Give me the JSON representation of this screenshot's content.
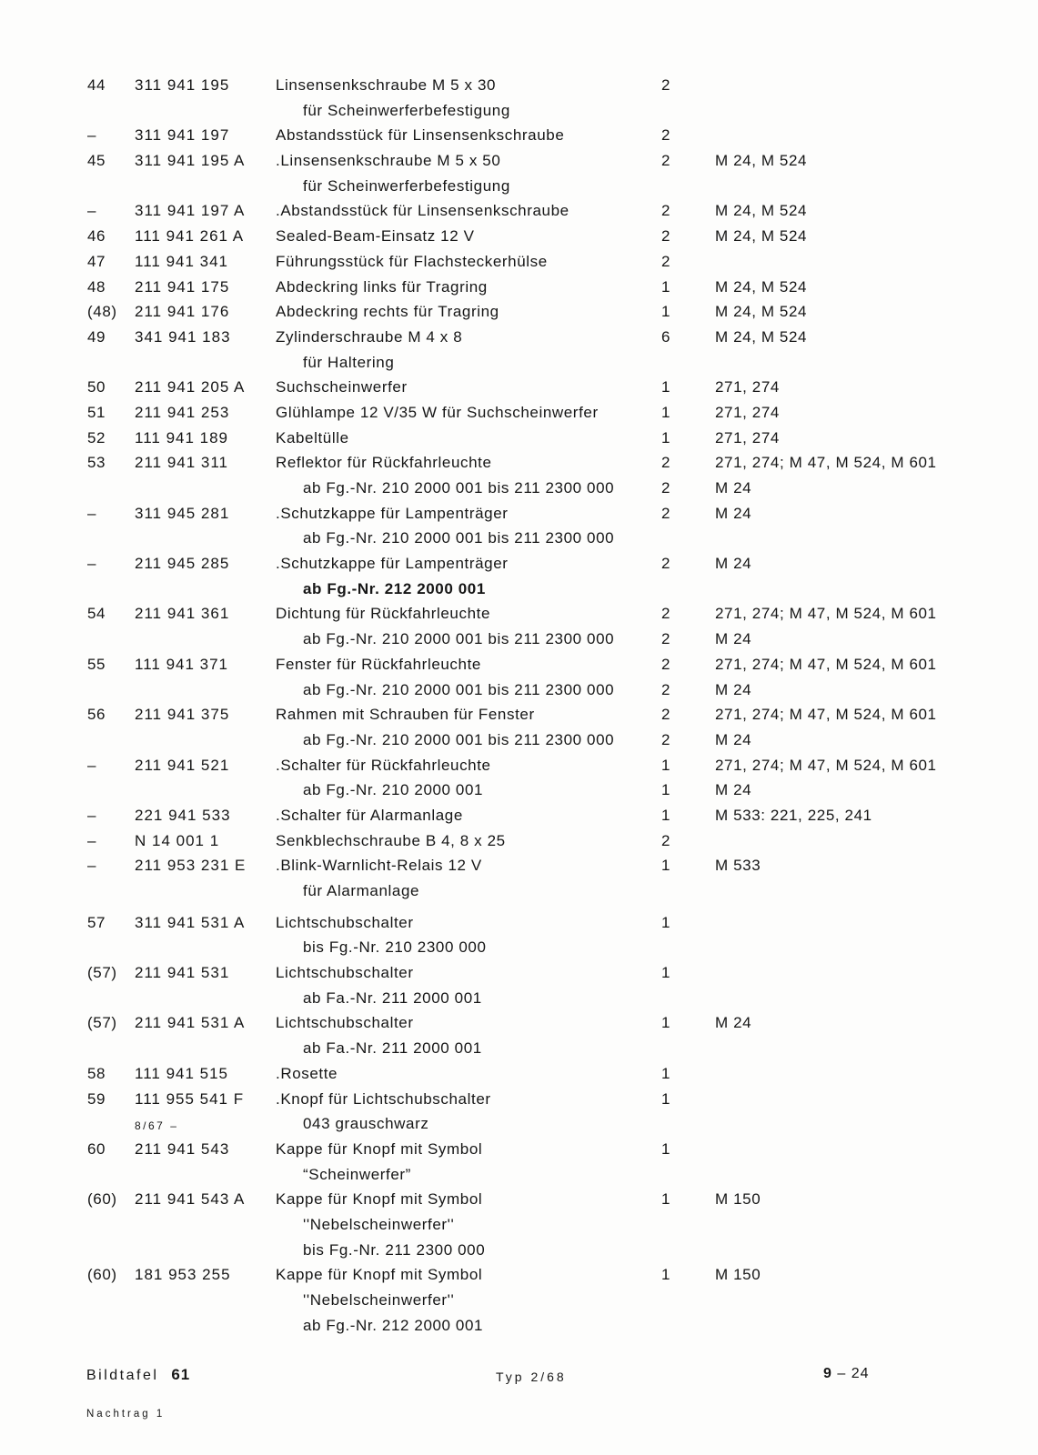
{
  "page": {
    "background_color": "#fdfdfc",
    "text_color": "#161616"
  },
  "table": {
    "rows": [
      {
        "pos": "44",
        "part": "311 941 195",
        "desc": "Linsensenkschraube M 5 x 30",
        "qty": "2"
      },
      {
        "desc": "für Scheinwerferbefestigung",
        "indent": true
      },
      {
        "pos": "–",
        "part": "311 941 197",
        "desc": "Abstandsstück für Linsensenkschraube",
        "qty": "2"
      },
      {
        "pos": "45",
        "part": "311 941 195 A",
        "desc": ".Linsensenkschraube M 5 x 50",
        "qty": "2",
        "models": "M 24, M 524"
      },
      {
        "desc": "für Scheinwerferbefestigung",
        "indent": true
      },
      {
        "pos": "–",
        "part": "311 941 197 A",
        "desc": ".Abstandsstück für Linsensenkschraube",
        "qty": "2",
        "models": "M 24, M 524"
      },
      {
        "pos": "46",
        "part": "111 941 261 A",
        "desc": "Sealed-Beam-Einsatz 12 V",
        "qty": "2",
        "models": "M 24, M 524"
      },
      {
        "pos": "47",
        "part": "111 941 341",
        "desc": "Führungsstück für Flachsteckerhülse",
        "qty": "2"
      },
      {
        "pos": "48",
        "part": "211 941 175",
        "desc": "Abdeckring links für Tragring",
        "qty": "1",
        "models": "M 24, M 524"
      },
      {
        "pos": "(48)",
        "part": "211 941 176",
        "desc": "Abdeckring rechts für Tragring",
        "qty": "1",
        "models": "M 24, M 524"
      },
      {
        "pos": "49",
        "part": "341 941 183",
        "desc": "Zylinderschraube M 4 x 8",
        "qty": "6",
        "models": "M 24, M 524"
      },
      {
        "desc": "für Haltering",
        "indent": true
      },
      {
        "pos": "50",
        "part": "211 941 205 A",
        "desc": "Suchscheinwerfer",
        "qty": "1",
        "models": "271, 274"
      },
      {
        "pos": "51",
        "part": "211 941 253",
        "desc": "Glühlampe 12 V/35 W für Suchscheinwerfer",
        "qty": "1",
        "models": "271, 274"
      },
      {
        "pos": "52",
        "part": "111 941 189",
        "desc": "Kabeltülle",
        "qty": "1",
        "models": "271, 274"
      },
      {
        "pos": "53",
        "part": "211 941 311",
        "desc": "Reflektor für Rückfahrleuchte",
        "qty": "2",
        "models": "271, 274; M 47, M 524, M 601"
      },
      {
        "desc": "ab Fg.-Nr. 210 2000 001 bis 211 2300 000",
        "indent": true,
        "qty": "2",
        "models": "M 24"
      },
      {
        "pos": "–",
        "part": "311 945 281",
        "desc": ".Schutzkappe für Lampenträger",
        "qty": "2",
        "models": "M 24"
      },
      {
        "desc": "ab Fg.-Nr. 210 2000 001 bis 211 2300 000",
        "indent": true
      },
      {
        "pos": "–",
        "part": "211 945 285",
        "desc": ".Schutzkappe für Lampenträger",
        "qty": "2",
        "models": "M 24"
      },
      {
        "desc": "ab Fg.-Nr.  212 2000 001",
        "indent": true,
        "bold": true
      },
      {
        "pos": "54",
        "part": "211 941 361",
        "desc": "Dichtung für Rückfahrleuchte",
        "qty": "2",
        "models": "271, 274; M 47, M 524, M 601"
      },
      {
        "desc": "ab Fg.-Nr. 210 2000 001 bis 211 2300 000",
        "indent": true,
        "qty": "2",
        "models": "M 24"
      },
      {
        "pos": "55",
        "part": "111 941 371",
        "desc": "Fenster für Rückfahrleuchte",
        "qty": "2",
        "models": "271, 274; M 47, M 524, M 601"
      },
      {
        "desc": "ab Fg.-Nr. 210 2000 001 bis 211 2300 000",
        "indent": true,
        "qty": "2",
        "models": "M 24"
      },
      {
        "pos": "56",
        "part": "211 941 375",
        "desc": "Rahmen mit Schrauben für Fenster",
        "qty": "2",
        "models": "271, 274; M 47, M 524, M 601"
      },
      {
        "desc": "ab Fg.-Nr. 210 2000 001 bis 211 2300 000",
        "indent": true,
        "qty": "2",
        "models": "M 24"
      },
      {
        "pos": "–",
        "part": "211 941 521",
        "desc": ".Schalter für Rückfahrleuchte",
        "qty": "1",
        "models": "271, 274; M 47, M 524, M 601"
      },
      {
        "desc": "ab Fg.-Nr. 210 2000 001",
        "indent": true,
        "qty": "1",
        "models": "M 24"
      },
      {
        "pos": "–",
        "part": "221 941 533",
        "desc": ".Schalter für Alarmanlage",
        "qty": "1",
        "models": "M 533: 221, 225, 241"
      },
      {
        "pos": "–",
        "part": "N 14 001 1",
        "desc": "Senkblechschraube B 4, 8 x 25",
        "qty": "2"
      },
      {
        "pos": "–",
        "part": "211 953 231 E",
        "desc": ".Blink-Warnlicht-Relais 12 V",
        "qty": "1",
        "models": "M 533"
      },
      {
        "desc": "für Alarmanlage",
        "indent": true
      },
      {
        "pos": "57",
        "part": "311 941 531 A",
        "desc": "Lichtschubschalter",
        "qty": "1",
        "gap": true
      },
      {
        "desc": "bis Fg.-Nr. 210 2300 000",
        "indent": true
      },
      {
        "pos": "(57)",
        "part": "211 941 531",
        "desc": "Lichtschubschalter",
        "qty": "1"
      },
      {
        "desc": "ab Fa.-Nr. 211 2000 001",
        "indent": true
      },
      {
        "pos": "(57)",
        "part": "211 941 531 A",
        "desc": "Lichtschubschalter",
        "qty": "1",
        "models": "M 24"
      },
      {
        "desc": "ab Fa.-Nr. 211 2000 001",
        "indent": true
      },
      {
        "pos": "58",
        "part": "111 941 515",
        "desc": ".Rosette",
        "qty": "1"
      },
      {
        "pos": "59",
        "part": "111 955 541 F",
        "desc": ".Knopf für Lichtschubschalter",
        "qty": "1"
      },
      {
        "part": "8/67 –",
        "part_small": true,
        "desc": "043 grauschwarz",
        "indent": true
      },
      {
        "pos": "60",
        "part": "211 941 543",
        "desc": "Kappe für Knopf mit Symbol",
        "qty": "1"
      },
      {
        "desc": "“Scheinwerfer”",
        "indent": true
      },
      {
        "pos": "(60)",
        "part": "211 941 543 A",
        "desc": "Kappe für Knopf mit Symbol",
        "qty": "1",
        "models": "M 150"
      },
      {
        "desc": "''Nebelscheinwerfer''",
        "indent": true
      },
      {
        "desc": "bis Fg.-Nr. 211 2300 000",
        "indent": true
      },
      {
        "pos": "(60)",
        "part": "181 953 255",
        "desc": "Kappe für Knopf mit Symbol",
        "qty": "1",
        "models": "M 150"
      },
      {
        "desc": "''Nebelscheinwerfer''",
        "indent": true
      },
      {
        "desc": "ab Fg.-Nr. 212 2000 001",
        "indent": true
      }
    ]
  },
  "footer": {
    "plate_label": "Bildtafel",
    "plate_number": "61",
    "type": "Typ 2/68",
    "page_bold": "9",
    "page_rest": "– 24",
    "supplement": "Nachtrag 1"
  }
}
